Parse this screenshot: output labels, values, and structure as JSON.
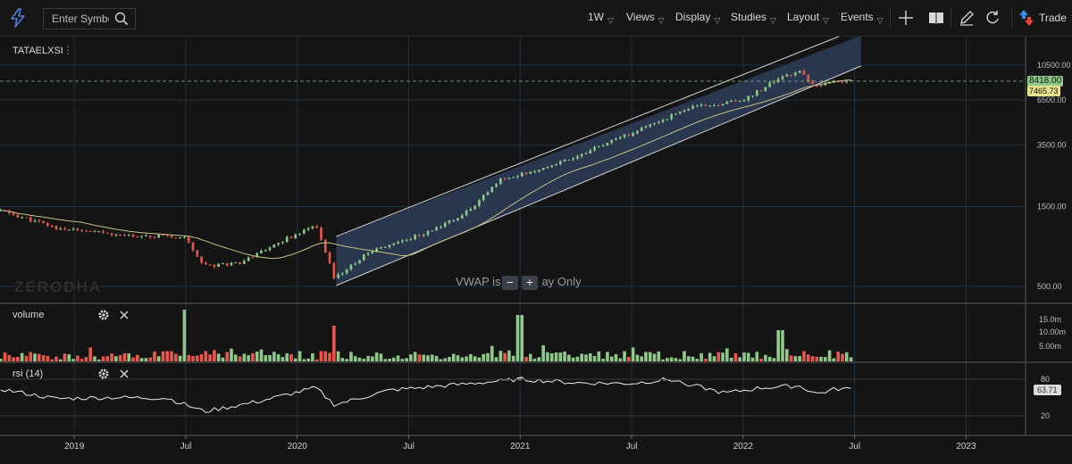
{
  "toolbar": {
    "search_placeholder": "Enter Symbol",
    "interval": "1W",
    "menus": [
      "Views",
      "Display",
      "Studies",
      "Layout",
      "Events"
    ],
    "trade_label": "Trade",
    "icons": [
      "bolt-icon",
      "search-icon",
      "crosshair-icon",
      "book-icon",
      "pencil-icon",
      "reset-icon",
      "trade-arrows-icon"
    ]
  },
  "main": {
    "symbol": "TATAELXSI",
    "symbol_menu_glyph": "⋮",
    "watermark": "ZERODHA",
    "vwap_note_left": "VWAP is",
    "vwap_note_right": "ay Only",
    "zoom_out": "−",
    "zoom_in": "+",
    "last_price": "8418.00",
    "ma_value": "7465.73"
  },
  "volume_panel": {
    "label": "volume"
  },
  "rsi_panel": {
    "label": "rsi (14)",
    "current": "63.71"
  },
  "chart_data": [
    {
      "type": "candlestick",
      "scale": "log",
      "interval": "weekly",
      "x_ticks": [
        "2019",
        "Jul",
        "2020",
        "Jul",
        "2021",
        "Jul",
        "2022",
        "Jul",
        "2023"
      ],
      "y_ticks": [
        "10500.00",
        "6500.00",
        "3500.00",
        "1500.00",
        "500.00"
      ],
      "approx_close_path": [
        {
          "x": "2018-09",
          "y": 1420
        },
        {
          "x": "2018-12",
          "y": 1120
        },
        {
          "x": "2019-02",
          "y": 1050
        },
        {
          "x": "2019-05",
          "y": 1000
        },
        {
          "x": "2019-07",
          "y": 980
        },
        {
          "x": "2019-08",
          "y": 660
        },
        {
          "x": "2019-10",
          "y": 700
        },
        {
          "x": "2019-12",
          "y": 920
        },
        {
          "x": "2020-02",
          "y": 1150
        },
        {
          "x": "2020-03",
          "y": 560
        },
        {
          "x": "2020-05",
          "y": 820
        },
        {
          "x": "2020-08",
          "y": 1050
        },
        {
          "x": "2020-10",
          "y": 1350
        },
        {
          "x": "2020-12",
          "y": 2200
        },
        {
          "x": "2021-02",
          "y": 2500
        },
        {
          "x": "2021-04",
          "y": 3000
        },
        {
          "x": "2021-07",
          "y": 4100
        },
        {
          "x": "2021-10",
          "y": 5800
        },
        {
          "x": "2022-01",
          "y": 6500
        },
        {
          "x": "2022-03",
          "y": 8800
        },
        {
          "x": "2022-04",
          "y": 9600
        },
        {
          "x": "2022-05",
          "y": 7800
        },
        {
          "x": "2022-06",
          "y": 8418
        }
      ],
      "moving_average_last": 7465.73,
      "last_price": 8418.0,
      "regression_channel": {
        "from": "2020-03",
        "to": "2022-07"
      }
    },
    {
      "type": "bar",
      "title": "volume",
      "y_ticks": [
        "15.0m",
        "10.00m",
        "5.00m"
      ]
    },
    {
      "type": "line",
      "title": "rsi (14)",
      "y_ticks": [
        "80",
        "20"
      ],
      "last_value": 63.71,
      "approx_path": [
        {
          "x": "2018-09",
          "y": 64
        },
        {
          "x": "2018-12",
          "y": 48
        },
        {
          "x": "2019-03",
          "y": 50
        },
        {
          "x": "2019-06",
          "y": 49
        },
        {
          "x": "2019-08",
          "y": 27
        },
        {
          "x": "2019-11",
          "y": 44
        },
        {
          "x": "2020-02",
          "y": 66
        },
        {
          "x": "2020-03",
          "y": 38
        },
        {
          "x": "2020-06",
          "y": 62
        },
        {
          "x": "2020-10",
          "y": 72
        },
        {
          "x": "2021-01",
          "y": 80
        },
        {
          "x": "2021-04",
          "y": 74
        },
        {
          "x": "2021-07",
          "y": 73
        },
        {
          "x": "2021-09",
          "y": 80
        },
        {
          "x": "2021-12",
          "y": 57
        },
        {
          "x": "2022-02",
          "y": 66
        },
        {
          "x": "2022-04",
          "y": 69
        },
        {
          "x": "2022-05",
          "y": 56
        },
        {
          "x": "2022-06",
          "y": 64
        }
      ]
    }
  ],
  "colors": {
    "background": "#141414",
    "grid": "#1e3040",
    "up": "#8fc98a",
    "down": "#e8584a",
    "ma_line": "#c8c080",
    "channel_fill": "#2d3c57",
    "last_price_badge": "#8fc98a",
    "ma_badge": "#e9e48c",
    "rsi_badge": "#dcdcdc"
  }
}
